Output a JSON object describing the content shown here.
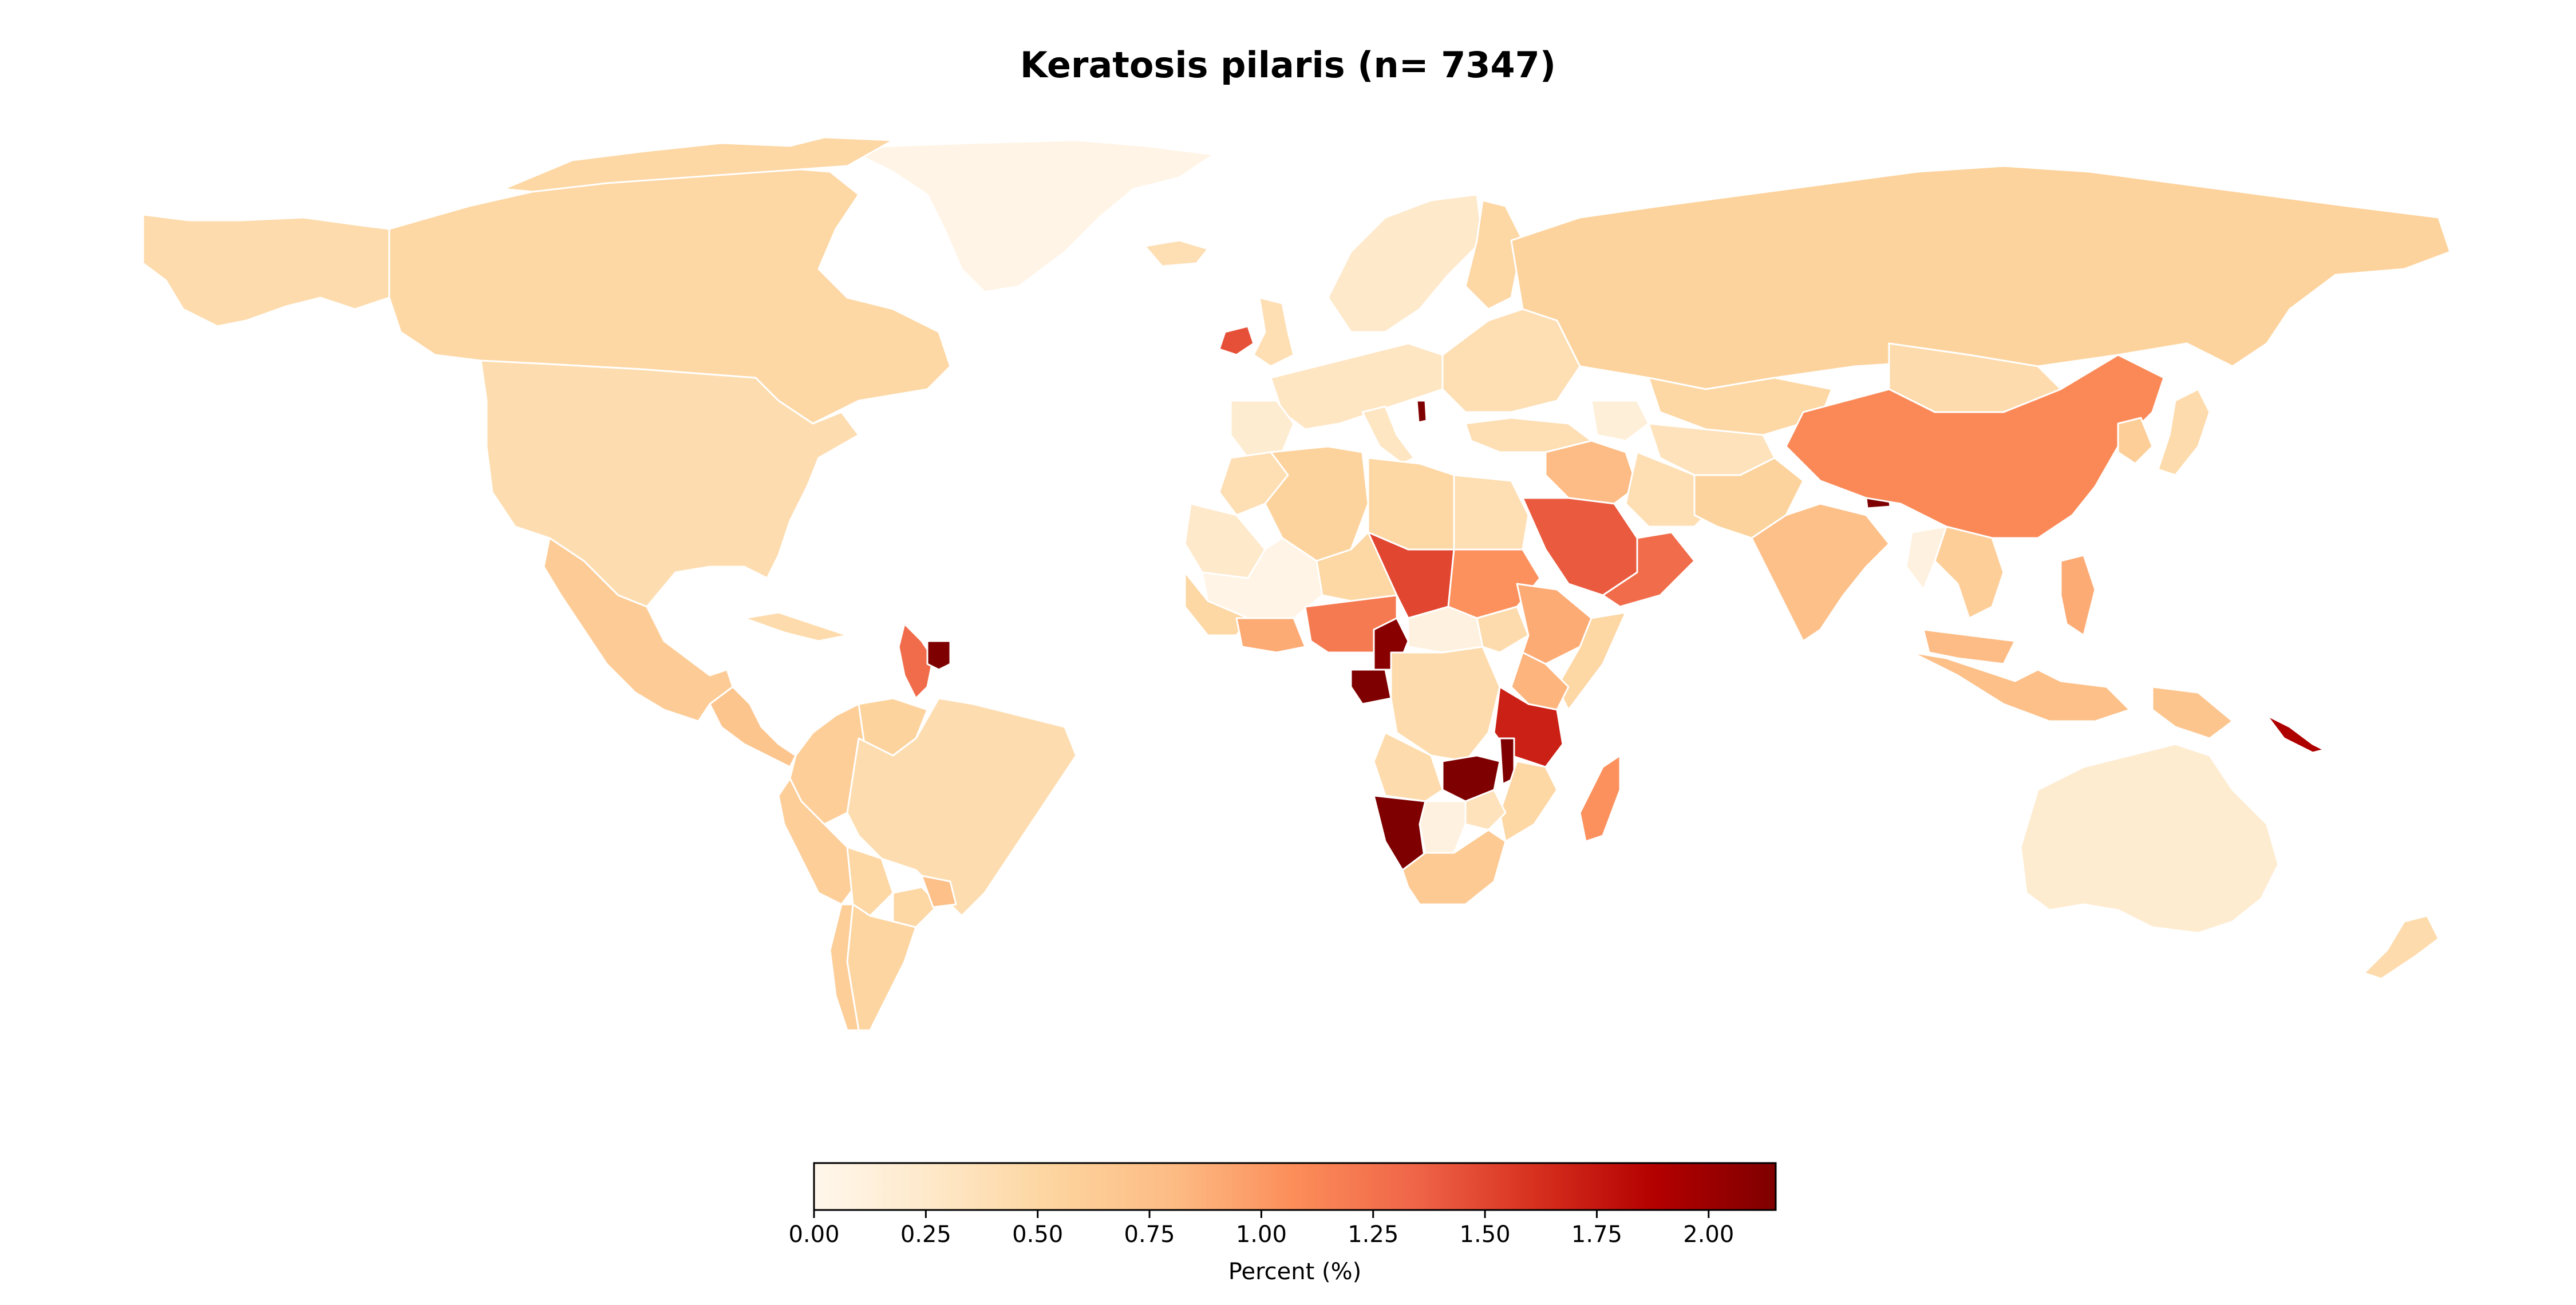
{
  "title": "Keratosis pilaris (n= 7347)",
  "colorbar": {
    "label": "Percent (%)",
    "min": 0.0,
    "max": 2.15,
    "ticks": [
      0.0,
      0.25,
      0.5,
      0.75,
      1.0,
      1.25,
      1.5,
      1.75,
      2.0
    ],
    "tick_labels": [
      "0.00",
      "0.25",
      "0.50",
      "0.75",
      "1.00",
      "1.25",
      "1.50",
      "1.75",
      "2.00"
    ],
    "colormap": "OrRd",
    "stops": [
      "#fff7ec",
      "#fee8c8",
      "#fdd49e",
      "#fdbb84",
      "#fc8d59",
      "#ef6548",
      "#d7301f",
      "#b30000",
      "#7f0000"
    ]
  },
  "regions": {
    "greenland": 0.05,
    "canada": 0.5,
    "usa": 0.42,
    "alaska": 0.45,
    "mexico": 0.62,
    "central_america": 0.7,
    "caribbean_cuba": 0.45,
    "colombia": 0.6,
    "venezuela": 0.55,
    "guyana_suriname": 1.3,
    "french_guiana": 2.15,
    "peru": 0.6,
    "brazil": 0.42,
    "bolivia": 0.5,
    "paraguay": 0.5,
    "argentina": 0.52,
    "chile": 0.6,
    "uruguay": 0.75,
    "iceland": 0.4,
    "ireland": 1.45,
    "uk": 0.4,
    "scandinavia": 0.25,
    "finland": 0.5,
    "western_europe": 0.3,
    "iberia": 0.2,
    "eastern_europe": 0.4,
    "italy": 0.3,
    "balkans_spot": 2.15,
    "russia": 0.55,
    "kazakhstan": 0.5,
    "turkey": 0.4,
    "caucasus": 0.15,
    "central_asia": 0.35,
    "middle_east": 0.8,
    "saudi_arabia": 1.4,
    "oman_yemen": 1.3,
    "iran": 0.4,
    "afghanistan_pakistan": 0.55,
    "india": 0.75,
    "nepal": 2.15,
    "china": 1.1,
    "mongolia": 0.45,
    "korea": 0.6,
    "japan": 0.45,
    "southeast_asia": 0.6,
    "thailand": 0.1,
    "malaysia": 0.8,
    "indonesia": 0.75,
    "philippines": 0.9,
    "png": 0.7,
    "solomon": 1.9,
    "australia": 0.2,
    "new_zealand": 0.45,
    "morocco": 0.4,
    "algeria": 0.55,
    "libya": 0.5,
    "egypt": 0.4,
    "mauritania": 0.25,
    "mali": 0.05,
    "niger": 0.5,
    "chad": 1.5,
    "sudan": 1.05,
    "south_sudan_area": 0.45,
    "ethiopia": 0.9,
    "somalia": 0.5,
    "west_coast_africa": 0.5,
    "ghana_ci": 0.9,
    "nigeria": 1.2,
    "cameroon": 2.1,
    "gabon_eq": 2.15,
    "car": 0.1,
    "drc": 0.45,
    "kenya": 0.85,
    "tanzania": 1.7,
    "angola": 0.45,
    "zambia": 2.15,
    "malawi": 2.15,
    "mozambique": 0.5,
    "namibia": 2.15,
    "botswana": 0.1,
    "zimbabwe": 0.35,
    "south_africa": 0.65,
    "madagascar": 1.05
  }
}
